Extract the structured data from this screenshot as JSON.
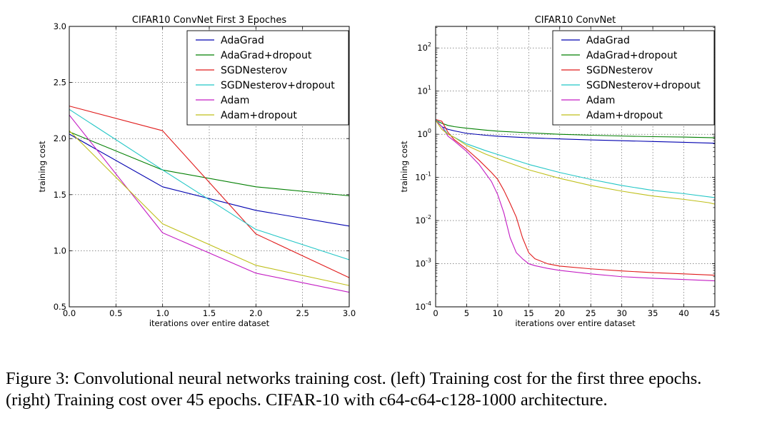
{
  "figure": {
    "caption_line1": "Figure 3: Convolutional neural networks training cost. (left) Training cost for the first three epochs.",
    "caption_line2": "(right) Training cost over 45 epochs. CIFAR-10 with c64-c64-c128-1000 architecture."
  },
  "colors": {
    "AdaGrad": "#0000b0",
    "AdaGrad+dropout": "#007f00",
    "SGDNesterov": "#e01b1b",
    "SGDNesterov+dropout": "#22c6c6",
    "Adam": "#c31cc3",
    "Adam+dropout": "#bfbf1a"
  },
  "chart_data": [
    {
      "type": "line",
      "title": "CIFAR10 ConvNet First 3 Epoches",
      "xlabel": "iterations over entire dataset",
      "ylabel": "training cost",
      "xlim": [
        0.0,
        3.0
      ],
      "ylim": [
        0.5,
        3.0
      ],
      "yscale": "linear",
      "xticks": [
        "0.0",
        "0.5",
        "1.0",
        "1.5",
        "2.0",
        "2.5",
        "3.0"
      ],
      "yticks": [
        "0.5",
        "1.0",
        "1.5",
        "2.0",
        "2.5",
        "3.0"
      ],
      "grid": true,
      "legend_position": "top-right",
      "x": [
        0,
        1,
        2,
        3
      ],
      "series": [
        {
          "name": "AdaGrad",
          "values": [
            2.04,
            1.57,
            1.36,
            1.22
          ]
        },
        {
          "name": "AdaGrad+dropout",
          "values": [
            2.06,
            1.72,
            1.57,
            1.49
          ]
        },
        {
          "name": "SGDNesterov",
          "values": [
            2.29,
            2.07,
            1.15,
            0.76
          ]
        },
        {
          "name": "SGDNesterov+dropout",
          "values": [
            2.26,
            1.72,
            1.19,
            0.92
          ]
        },
        {
          "name": "Adam",
          "values": [
            2.21,
            1.16,
            0.8,
            0.63
          ]
        },
        {
          "name": "Adam+dropout",
          "values": [
            2.07,
            1.24,
            0.87,
            0.69
          ]
        }
      ]
    },
    {
      "type": "line",
      "title": "CIFAR10 ConvNet",
      "xlabel": "iterations over entire dataset",
      "ylabel": "training cost",
      "xlim": [
        0,
        45
      ],
      "ylim_exponent": [
        -4,
        2.5
      ],
      "yscale": "log",
      "xticks": [
        "0",
        "5",
        "10",
        "15",
        "20",
        "25",
        "30",
        "35",
        "40",
        "45"
      ],
      "yticks": [
        {
          "base": "10",
          "exp": "-4"
        },
        {
          "base": "10",
          "exp": "-3"
        },
        {
          "base": "10",
          "exp": "-2"
        },
        {
          "base": "10",
          "exp": "-1"
        },
        {
          "base": "10",
          "exp": "0"
        },
        {
          "base": "10",
          "exp": "1"
        },
        {
          "base": "10",
          "exp": "2"
        }
      ],
      "grid": true,
      "legend_position": "top-right",
      "series": [
        {
          "name": "AdaGrad",
          "x": [
            0,
            1,
            2,
            3,
            5,
            8,
            10,
            15,
            20,
            25,
            30,
            35,
            40,
            45
          ],
          "values": [
            2.1,
            1.5,
            1.3,
            1.2,
            1.05,
            0.95,
            0.9,
            0.83,
            0.78,
            0.74,
            0.71,
            0.68,
            0.65,
            0.62
          ]
        },
        {
          "name": "AdaGrad+dropout",
          "x": [
            0,
            1,
            2,
            3,
            5,
            8,
            10,
            15,
            20,
            25,
            30,
            35,
            40,
            45
          ],
          "values": [
            2.1,
            1.8,
            1.6,
            1.5,
            1.38,
            1.25,
            1.18,
            1.08,
            1.0,
            0.95,
            0.91,
            0.88,
            0.86,
            0.83
          ]
        },
        {
          "name": "SGDNesterov",
          "x": [
            0,
            1,
            2,
            3,
            5,
            7,
            9,
            10,
            11,
            12,
            13,
            14,
            15,
            16,
            18,
            20,
            25,
            30,
            35,
            40,
            45
          ],
          "values": [
            2.2,
            2.0,
            1.1,
            0.75,
            0.45,
            0.25,
            0.13,
            0.09,
            0.05,
            0.025,
            0.012,
            0.004,
            0.0018,
            0.0013,
            0.001,
            0.00088,
            0.00076,
            0.00068,
            0.00062,
            0.00058,
            0.00054
          ]
        },
        {
          "name": "SGDNesterov+dropout",
          "x": [
            0,
            1,
            2,
            3,
            5,
            8,
            10,
            15,
            20,
            25,
            30,
            35,
            40,
            45
          ],
          "values": [
            2.2,
            1.5,
            1.0,
            0.85,
            0.6,
            0.42,
            0.34,
            0.2,
            0.13,
            0.09,
            0.065,
            0.05,
            0.042,
            0.034
          ]
        },
        {
          "name": "Adam",
          "x": [
            0,
            1,
            2,
            3,
            5,
            7,
            9,
            10,
            11,
            12,
            13,
            14,
            15,
            16,
            18,
            20,
            25,
            30,
            35,
            40,
            45
          ],
          "values": [
            2.1,
            1.5,
            0.9,
            0.7,
            0.4,
            0.2,
            0.08,
            0.04,
            0.015,
            0.004,
            0.0018,
            0.0013,
            0.001,
            0.0009,
            0.00078,
            0.0007,
            0.00058,
            0.0005,
            0.00046,
            0.00043,
            0.0004
          ]
        },
        {
          "name": "Adam+dropout",
          "x": [
            0,
            1,
            2,
            3,
            5,
            8,
            10,
            15,
            20,
            25,
            30,
            35,
            40,
            44,
            45
          ],
          "values": [
            2.1,
            1.3,
            1.0,
            0.85,
            0.55,
            0.35,
            0.27,
            0.15,
            0.095,
            0.065,
            0.048,
            0.037,
            0.031,
            0.026,
            0.024
          ]
        }
      ]
    }
  ]
}
